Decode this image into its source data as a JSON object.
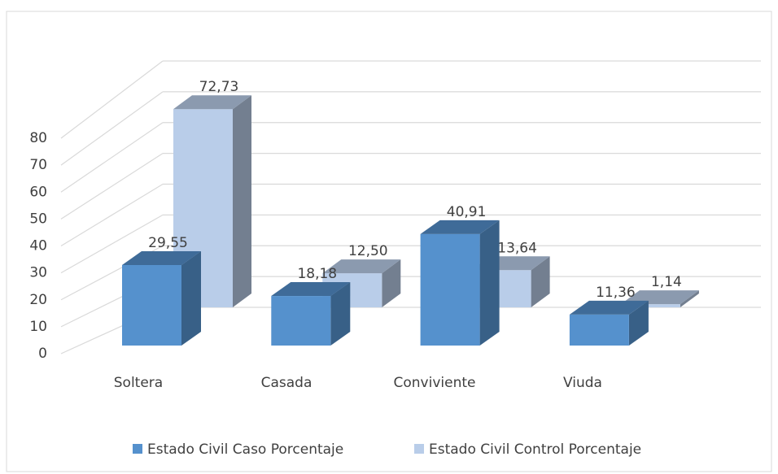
{
  "chart_data": {
    "type": "bar3d",
    "categories": [
      "Soltera",
      "Casada",
      "Conviviente",
      "Viuda"
    ],
    "series": [
      {
        "name": "Estado Civil Caso Porcentaje",
        "color": "#5591cd",
        "values": [
          29.55,
          18.18,
          40.91,
          11.36
        ],
        "value_labels": [
          "29,55",
          "18,18",
          "40,91",
          "11,36"
        ]
      },
      {
        "name": "Estado Civil Control Porcentaje",
        "color": "#b9cde9",
        "values": [
          72.73,
          12.5,
          13.64,
          1.14
        ],
        "value_labels": [
          "72,73",
          "12,50",
          "13,64",
          "1,14"
        ]
      }
    ],
    "ylim": [
      0,
      80
    ],
    "yticks": [
      0,
      10,
      20,
      30,
      40,
      50,
      60,
      70,
      80
    ],
    "grid": true,
    "legend": "bottom"
  }
}
